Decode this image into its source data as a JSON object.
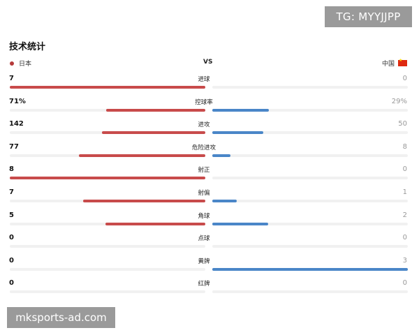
{
  "watermarks": {
    "top": "TG: MYYJJPP",
    "bottom": "mksports-ad.com"
  },
  "title": "技术统计",
  "teams": {
    "home": "日本",
    "vs": "VS",
    "away": "中国"
  },
  "colors": {
    "home_bar": "#c84b4b",
    "away_bar": "#4a86c8",
    "home_dot": "#b53a3a",
    "flag": "#de2910"
  },
  "stats": [
    {
      "label": "进球",
      "home": "7",
      "away": "0",
      "home_share": 1.0,
      "away_share": 0.0
    },
    {
      "label": "控球率",
      "home": "71%",
      "away": "29%",
      "home_share": 0.71,
      "away_share": 0.29
    },
    {
      "label": "进攻",
      "home": "142",
      "away": "50",
      "home_share": 0.74,
      "away_share": 0.26
    },
    {
      "label": "危险进攻",
      "home": "77",
      "away": "8",
      "home_share": 0.906,
      "away_share": 0.094
    },
    {
      "label": "射正",
      "home": "8",
      "away": "0",
      "home_share": 1.0,
      "away_share": 0.0
    },
    {
      "label": "射偏",
      "home": "7",
      "away": "1",
      "home_share": 0.875,
      "away_share": 0.125
    },
    {
      "label": "角球",
      "home": "5",
      "away": "2",
      "home_share": 0.714,
      "away_share": 0.286
    },
    {
      "label": "点球",
      "home": "0",
      "away": "0",
      "home_share": 0.0,
      "away_share": 0.0
    },
    {
      "label": "黄牌",
      "home": "0",
      "away": "3",
      "home_share": 0.0,
      "away_share": 1.0
    },
    {
      "label": "红牌",
      "home": "0",
      "away": "0",
      "home_share": 0.0,
      "away_share": 0.0
    }
  ]
}
